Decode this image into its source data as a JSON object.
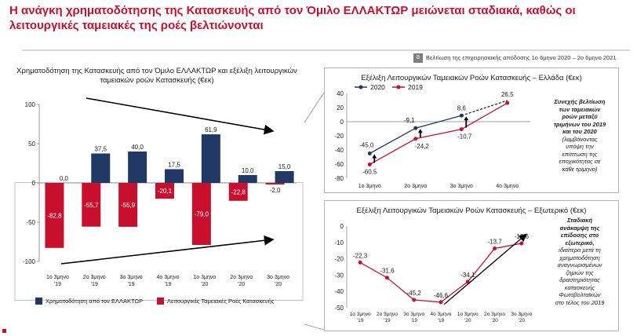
{
  "page": {
    "title": "Η ανάγκη χρηματοδότησης της Κατασκευής από τον Όμιλο ΕΛΛΑΚΤΩΡ μειώνεται σταδιακά, καθώς οι λειτουργικές ταμειακές της ροές βελτιώνονται",
    "section_badge": "8",
    "section_label": "Βελτίωση της επιχειρησιακής απόδοσης 1ο 6μηνο 2020 – 2ο 6μηνο 2021",
    "colors": {
      "accent": "#c8102e",
      "navy": "#1f3864",
      "red": "#c8102e",
      "gray": "#808080"
    }
  },
  "chart_data": [
    {
      "type": "bar",
      "title": "Χρηματοδότηση της Κατασκευής από τον Όμιλο ΕΛΛΑΚΤΩΡ και εξέλιξη λειτουργικών ταμειακών ροών Κατασκευής (€εκ)",
      "categories": [
        "1ο 3μηνο '19",
        "2ο 3μηνο '19",
        "3ο 3μηνο '19",
        "4ο 3μηνο '19",
        "1ο 3μηνο '20",
        "2ο 3μηνο '20",
        "3ο 3μηνο '20"
      ],
      "series": [
        {
          "name": "Χρηματοδότηση από τον ΕΛΛΑΚΤΩΡ",
          "color": "#1f3864",
          "values": [
            0.0,
            37.5,
            40.0,
            17.5,
            61.9,
            10.0,
            15.0
          ],
          "labels": [
            "0,0",
            "37,5",
            "40,0",
            "17,5",
            "61,9",
            "10,0",
            "15,0"
          ]
        },
        {
          "name": "Λειτουργικές Ταμειακές Ροές Κατασκευής",
          "color": "#c8102e",
          "values": [
            -82.8,
            -55.7,
            -55.9,
            -20.1,
            -79.0,
            -22.8,
            -2.0
          ],
          "labels": [
            "-82,8",
            "-55,7",
            "-55,9",
            "-20,1",
            "-79,0",
            "-22,8",
            "-2,0"
          ]
        }
      ],
      "ylim": [
        -100,
        100
      ],
      "yticks": [
        "100",
        "50",
        "0",
        "-50",
        "-100"
      ],
      "legend": "bottom",
      "grid": false
    },
    {
      "type": "line",
      "title": "Εξέλιξη Λειτουργικών Ταμειακών Ροών Κατασκευής – Ελλάδα (€εκ)",
      "categories": [
        "1ο 3μηνο",
        "2ο 3μηνο",
        "3ο 3μηνο",
        "4ο 3μηνο"
      ],
      "series": [
        {
          "name": "2020",
          "color": "#1f3864",
          "values": [
            -45.0,
            -9.1,
            8.6,
            null
          ],
          "labels": [
            "-45,0",
            "-9,1",
            "8,6",
            ""
          ]
        },
        {
          "name": "2019",
          "color": "#c8102e",
          "values": [
            -60.5,
            -24.2,
            -10.7,
            26.5
          ],
          "labels": [
            "-60,5",
            "-24,2",
            "-10,7",
            "26,5"
          ]
        }
      ],
      "ylim": [
        -80,
        40
      ],
      "yticks": [
        "40",
        "20",
        "0",
        "-20",
        "-40",
        "-60",
        "-80"
      ],
      "legend": "top-left",
      "grid": false,
      "note_lines": [
        "Συνεχής βελτίωση",
        "των ταμειακών",
        "ροών μεταξύ",
        "τριμήνων του 2019",
        "και του 2020",
        "(λαμβάνοντας",
        "υπόψη την",
        "επίπτωση της",
        "εποχικότητας σε",
        "κάθε τρίμηνο)"
      ]
    },
    {
      "type": "line",
      "title": "Εξέλιξη Λειτουργικών Ταμειακών Ροών Κατασκευής – Εξωτερικό (€εκ)",
      "categories": [
        "1ο 3μηνο '19",
        "2ο 3μηνο '19",
        "3ο 3μηνο '19",
        "4ο 3μηνο '19",
        "1ο 3μηνο '20",
        "2ο 3μηνο '20",
        "3ο 3μηνο '20"
      ],
      "series": [
        {
          "name": "",
          "color": "#c8102e",
          "values": [
            -22.3,
            -31.6,
            -45.2,
            -46.6,
            -34.1,
            -13.7,
            -10.6
          ],
          "labels": [
            "-22,3",
            "-31,6",
            "-45,2",
            "-46,6",
            "-34,1",
            "-13,7",
            "-10,6"
          ]
        }
      ],
      "ylim": [
        -50,
        0
      ],
      "yticks": [
        "0",
        "-10",
        "-20",
        "-30",
        "-40",
        "-50"
      ],
      "grid": false,
      "note_lines": [
        "Σταδιακή",
        "ανάκαμψη της",
        "επίδοσης στο",
        "εξωτερικό,",
        "ιδιαίτερα μετά τη",
        "χρηματοδότηση",
        "αναγνωρισμένων",
        "ζημιών της",
        "δραστηριότητας",
        "κατασκευής",
        "Φωτοβολταϊκών",
        "στο τέλος του 2019"
      ]
    }
  ]
}
